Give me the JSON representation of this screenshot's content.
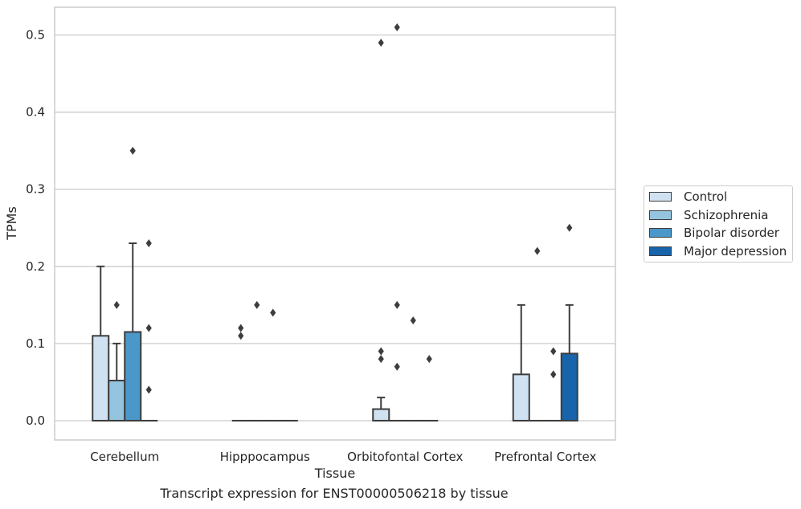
{
  "chart_data": {
    "type": "box",
    "title": "",
    "caption": "Transcript expression for ENST00000506218 by tissue",
    "xlabel": "Tissue",
    "ylabel": "TPMs",
    "ylim": [
      -0.025,
      0.536
    ],
    "yticks": [
      "0.0",
      "0.1",
      "0.2",
      "0.3",
      "0.4",
      "0.5"
    ],
    "grid": "horizontal",
    "legend_position": "right",
    "categories": [
      "Cerebellum",
      "Hipppocampus",
      "Orbitofontal Cortex",
      "Prefrontal Cortex"
    ],
    "series": [
      {
        "name": "Control",
        "color": "#d0e1f2",
        "boxes": [
          {
            "q1": 0,
            "median": 0,
            "q3": 0.11,
            "whisker_low": 0,
            "whisker_high": 0.2,
            "outliers": []
          },
          {
            "q1": 0,
            "median": 0,
            "q3": 0,
            "whisker_low": 0,
            "whisker_high": 0,
            "outliers": [
              0.11,
              0.12
            ]
          },
          {
            "q1": 0,
            "median": 0,
            "q3": 0.015,
            "whisker_low": 0,
            "whisker_high": 0.03,
            "outliers": [
              0.08,
              0.09,
              0.49
            ]
          },
          {
            "q1": 0,
            "median": 0,
            "q3": 0.06,
            "whisker_low": 0,
            "whisker_high": 0.15,
            "outliers": []
          }
        ]
      },
      {
        "name": "Schizophrenia",
        "color": "#94c4df",
        "boxes": [
          {
            "q1": 0,
            "median": 0,
            "q3": 0.052,
            "whisker_low": 0,
            "whisker_high": 0.1,
            "outliers": [
              0.15
            ]
          },
          {
            "q1": 0,
            "median": 0,
            "q3": 0,
            "whisker_low": 0,
            "whisker_high": 0,
            "outliers": [
              0.15
            ]
          },
          {
            "q1": 0,
            "median": 0,
            "q3": 0,
            "whisker_low": 0,
            "whisker_high": 0,
            "outliers": [
              0.07,
              0.15,
              0.51
            ]
          },
          {
            "q1": 0,
            "median": 0,
            "q3": 0,
            "whisker_low": 0,
            "whisker_high": 0,
            "outliers": [
              0.22
            ]
          }
        ]
      },
      {
        "name": "Bipolar disorder",
        "color": "#4a98c9",
        "boxes": [
          {
            "q1": 0,
            "median": 0,
            "q3": 0.115,
            "whisker_low": 0,
            "whisker_high": 0.23,
            "outliers": [
              0.35
            ]
          },
          {
            "q1": 0,
            "median": 0,
            "q3": 0,
            "whisker_low": 0,
            "whisker_high": 0,
            "outliers": [
              0.14
            ]
          },
          {
            "q1": 0,
            "median": 0,
            "q3": 0,
            "whisker_low": 0,
            "whisker_high": 0,
            "outliers": [
              0.13
            ]
          },
          {
            "q1": 0,
            "median": 0,
            "q3": 0,
            "whisker_low": 0,
            "whisker_high": 0,
            "outliers": [
              0.06,
              0.09
            ]
          }
        ]
      },
      {
        "name": "Major depression",
        "color": "#1764ab",
        "boxes": [
          {
            "q1": 0,
            "median": 0,
            "q3": 0,
            "whisker_low": 0,
            "whisker_high": 0,
            "outliers": [
              0.04,
              0.12,
              0.23
            ]
          },
          {
            "q1": 0,
            "median": 0,
            "q3": 0,
            "whisker_low": 0,
            "whisker_high": 0,
            "outliers": []
          },
          {
            "q1": 0,
            "median": 0,
            "q3": 0,
            "whisker_low": 0,
            "whisker_high": 0,
            "outliers": [
              0.08
            ]
          },
          {
            "q1": 0,
            "median": 0,
            "q3": 0.087,
            "whisker_low": 0,
            "whisker_high": 0.15,
            "outliers": [
              0.25
            ]
          }
        ]
      }
    ]
  }
}
